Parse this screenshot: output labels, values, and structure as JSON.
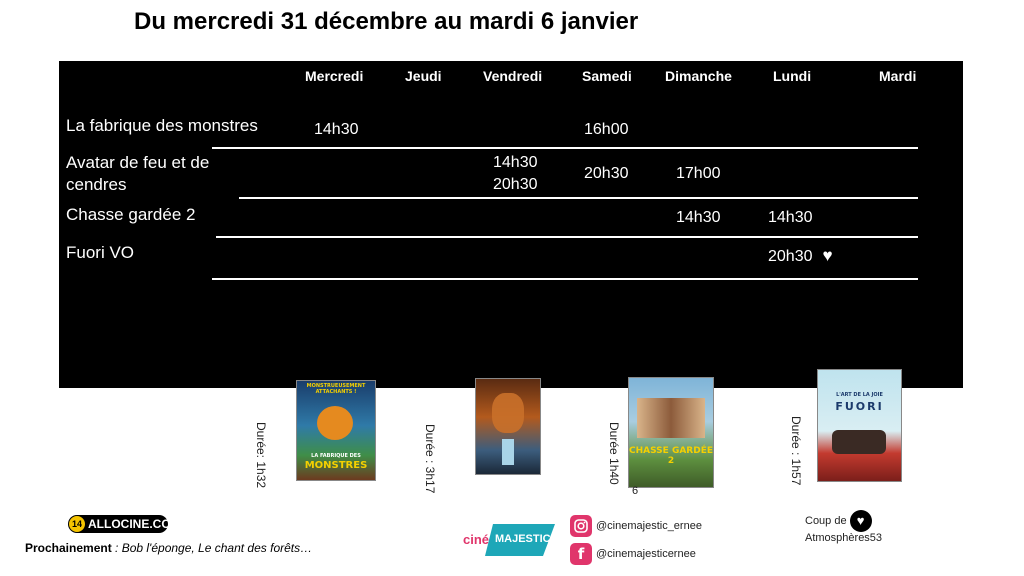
{
  "title": "Du mercredi 31 décembre au mardi 6 janvier",
  "days": [
    "Mercredi",
    "Jeudi",
    "Vendredi",
    "Samedi",
    "Dimanche",
    "Lundi",
    "Mardi"
  ],
  "films": [
    {
      "name": "La fabrique des monstres",
      "times": {
        "mercredi": "14h30",
        "samedi": "16h00"
      }
    },
    {
      "name": "Avatar de feu et de cendres",
      "times": {
        "vendredi_1": "14h30",
        "vendredi_2": "20h30",
        "samedi": "20h30",
        "dimanche": "17h00"
      }
    },
    {
      "name": "Chasse gardée 2",
      "times": {
        "dimanche": "14h30",
        "lundi": "14h30"
      }
    },
    {
      "name": "Fuori VO",
      "times": {
        "lundi": "20h30"
      },
      "heart": "♥"
    }
  ],
  "posters": [
    {
      "duree": "Durée: 1h32",
      "title_line1": "LA FABRIQUE DES",
      "title_line2": "MONSTRES",
      "tagline": "MONSTRUEUSEMENT ATTACHANTS !"
    },
    {
      "duree": "Durée : 3h17"
    },
    {
      "duree": "Durée 1h40",
      "extra": "6",
      "title": "CHASSE GARDÉE 2"
    },
    {
      "duree": "Durée : 1h57",
      "title": "FUORI",
      "subtitle": "L'ART DE LA JOIE"
    }
  ],
  "footer": {
    "allocine": "ALLOCINE.COM",
    "allocine_badge": "14",
    "next_bold": "Prochainemen",
    "next_bold_tail": "t",
    "next_rest": " : Bob l'éponge, Le chant des forêts…",
    "logo_cine": "ciné",
    "logo_majestic": "MAJESTIC",
    "instagram": "@cinemajestic_ernee",
    "facebook": "@cinemajesticernee",
    "coup_label": "Coup de",
    "coup_org": "Atmosphères53"
  },
  "colors": {
    "board": "#000000",
    "accent_pink": "#e0356b",
    "teal": "#1ea7b8"
  },
  "icons": [
    "instagram-icon",
    "facebook-icon",
    "heart-icon"
  ]
}
